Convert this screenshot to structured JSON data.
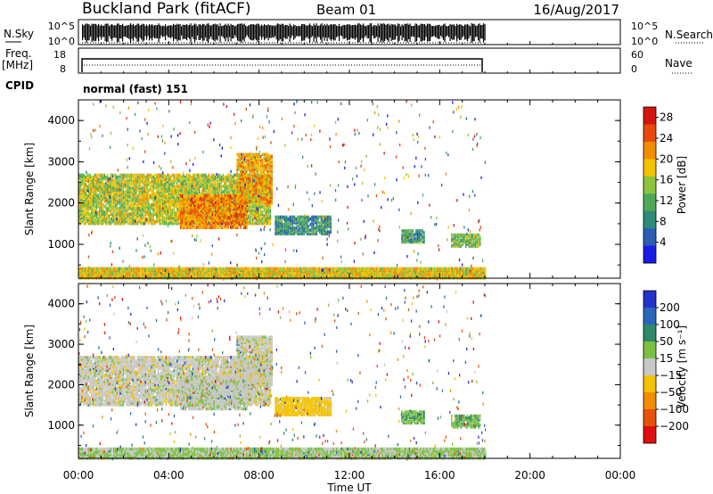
{
  "header": {
    "station": "Buckland Park (fitACF)",
    "beam": "Beam 01",
    "date": "16/Aug/2017"
  },
  "nsky_panel": {
    "left_label": "N.Sky",
    "right_label": "N.Search",
    "left_ticks": [
      "10^5",
      "10^0"
    ],
    "right_ticks": [
      "10^5",
      "10^0"
    ]
  },
  "freq_panel": {
    "left_label_top": "Freq.",
    "left_label_unit": "[MHz]",
    "left_ticks": [
      "18",
      "8"
    ],
    "right_ticks": [
      "60",
      "0"
    ],
    "right_label": "Nave"
  },
  "cpid": {
    "label": "CPID",
    "mode": "normal (fast) 151"
  },
  "x_axis": {
    "title": "Time UT",
    "ticks": [
      "00:00",
      "04:00",
      "08:00",
      "12:00",
      "16:00",
      "20:00",
      "00:00"
    ],
    "data_end_hour": 18
  },
  "chart_data": [
    {
      "type": "heatmap",
      "name": "power",
      "ylabel": "Slant Range [km]",
      "yticks": [
        "1000",
        "2000",
        "3000",
        "4000"
      ],
      "ylim": [
        180,
        4500
      ],
      "xlim_hours": [
        0,
        24
      ],
      "colorbar": {
        "label": "Power [dB]",
        "ticks": [
          "4",
          "8",
          "12",
          "16",
          "20",
          "24",
          "28"
        ],
        "range": [
          0,
          30
        ],
        "colors": [
          "#1a1ae6",
          "#2a5db5",
          "#2e8b7a",
          "#4fa858",
          "#8cc43c",
          "#f2c200",
          "#f28c00",
          "#e84a0c",
          "#d4150e"
        ]
      },
      "regions": [
        {
          "t0": 0,
          "t1": 8.5,
          "r0": 1500,
          "r1": 2700,
          "value": 16
        },
        {
          "t0": 4.5,
          "t1": 7.5,
          "r0": 1400,
          "r1": 2200,
          "value": 22
        },
        {
          "t0": 7,
          "t1": 8.6,
          "r0": 2000,
          "r1": 3200,
          "value": 20
        },
        {
          "t0": 8.7,
          "t1": 11.2,
          "r0": 1250,
          "r1": 1700,
          "value": 9
        },
        {
          "t0": 14.3,
          "t1": 15.3,
          "r0": 1050,
          "r1": 1350,
          "value": 10
        },
        {
          "t0": 16.5,
          "t1": 17.8,
          "r0": 950,
          "r1": 1250,
          "value": 14
        },
        {
          "t0": 0,
          "t1": 18,
          "r0": 180,
          "r1": 450,
          "value": 18
        }
      ]
    },
    {
      "type": "heatmap",
      "name": "velocity",
      "ylabel": "Slant Range [km]",
      "yticks": [
        "1000",
        "2000",
        "3000",
        "4000"
      ],
      "ylim": [
        180,
        4500
      ],
      "xlim_hours": [
        0,
        24
      ],
      "colorbar": {
        "label": "Velocity [m s⁻¹]",
        "ticks": [
          "200",
          "100",
          "50",
          "15",
          "−15",
          "−50",
          "−100",
          "−200"
        ],
        "colors": [
          "#2233cc",
          "#2a66bb",
          "#2e8a6a",
          "#7cc043",
          "#c8c8c8",
          "#f2c200",
          "#f28c00",
          "#e8500c",
          "#e00e0e"
        ]
      },
      "regions": [
        {
          "t0": 0,
          "t1": 8.5,
          "r0": 1500,
          "r1": 2700,
          "value": 0
        },
        {
          "t0": 4.5,
          "t1": 7.5,
          "r0": 1400,
          "r1": 2200,
          "value": 5
        },
        {
          "t0": 7,
          "t1": 8.6,
          "r0": 2000,
          "r1": 3200,
          "value": 0
        },
        {
          "t0": 8.7,
          "t1": 11.2,
          "r0": 1250,
          "r1": 1700,
          "value": -30
        },
        {
          "t0": 14.3,
          "t1": 15.3,
          "r0": 1050,
          "r1": 1350,
          "value": 40
        },
        {
          "t0": 16.5,
          "t1": 17.8,
          "r0": 950,
          "r1": 1250,
          "value": 40
        },
        {
          "t0": 0,
          "t1": 18,
          "r0": 180,
          "r1": 450,
          "value": 20
        }
      ]
    }
  ]
}
